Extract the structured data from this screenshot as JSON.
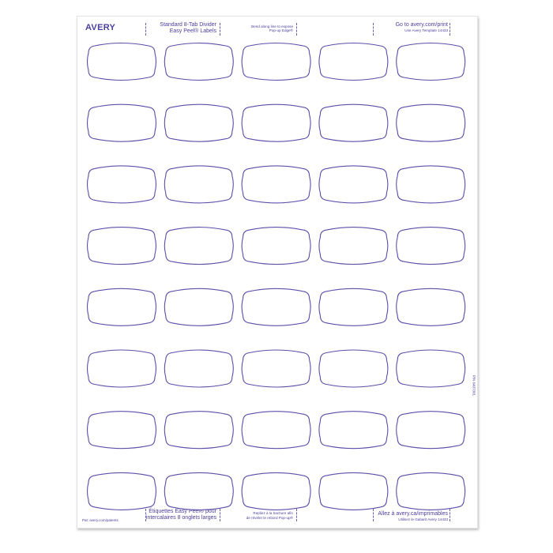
{
  "brand": "AVERY",
  "header": {
    "product_line1": "Standard 8-Tab Divider",
    "product_line2": "Easy Peel® Labels",
    "bend_line1": "Bend along line to expose",
    "bend_line2": "Pop-up Edge®",
    "go_to": "Go to avery.com/print",
    "template": "Use Avery Template 14433"
  },
  "footer": {
    "product_line1": "Étiquettes Easy Peel® pour",
    "product_line2": "intercalaires 8 onglets larges",
    "bend_line1": "Repliez à la hachure afin",
    "bend_line2": "de révéler le rebord Pop-up®",
    "go_to": "Allez à avery.ca/imprimables",
    "template": "Utilisez le Gabarit Avery 14433",
    "patents": "Pat: avery.com/patents"
  },
  "part_number": "P/N 6407301",
  "labels": {
    "rows": 8,
    "cols": 5
  },
  "colors": {
    "ink": "#4a3f9c",
    "label_outline": "#5a4fa8"
  }
}
